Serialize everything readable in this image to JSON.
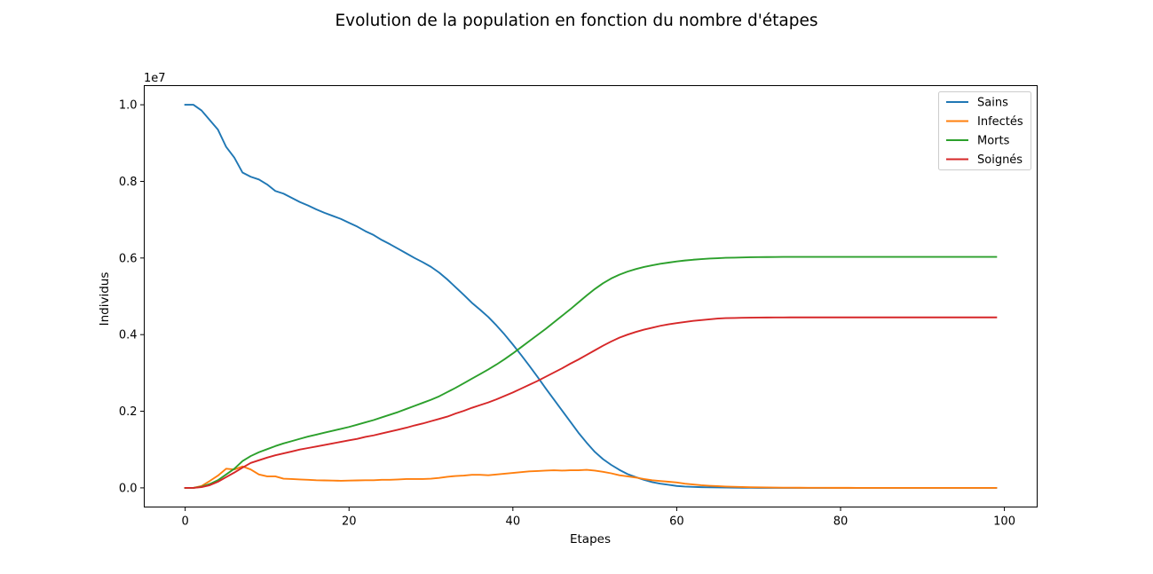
{
  "chart_data": {
    "type": "line",
    "title": "Evolution de la population en fonction du nombre d'étapes",
    "xlabel": "Etapes",
    "ylabel": "Individus",
    "y_offset_label": "1e7",
    "xlim": [
      -5,
      104
    ],
    "ylim": [
      -0.05,
      1.05
    ],
    "x_ticks": [
      0,
      20,
      40,
      60,
      80,
      100
    ],
    "x_tick_labels": [
      "0",
      "20",
      "40",
      "60",
      "80",
      "100"
    ],
    "y_ticks": [
      0.0,
      0.2,
      0.4,
      0.6,
      0.8,
      1.0
    ],
    "y_tick_labels": [
      "0.0",
      "0.2",
      "0.4",
      "0.6",
      "0.8",
      "1.0"
    ],
    "grid": false,
    "legend_position": "top-right",
    "x": [
      0,
      1,
      2,
      3,
      4,
      5,
      6,
      7,
      8,
      9,
      10,
      11,
      12,
      13,
      14,
      15,
      16,
      17,
      18,
      19,
      20,
      21,
      22,
      23,
      24,
      25,
      26,
      27,
      28,
      29,
      30,
      31,
      32,
      33,
      34,
      35,
      36,
      37,
      38,
      39,
      40,
      41,
      42,
      43,
      44,
      45,
      46,
      47,
      48,
      49,
      50,
      51,
      52,
      53,
      54,
      55,
      56,
      57,
      58,
      59,
      60,
      61,
      62,
      63,
      64,
      65,
      66,
      67,
      68,
      69,
      70,
      71,
      72,
      73,
      74,
      75,
      76,
      77,
      78,
      79,
      80,
      81,
      82,
      83,
      84,
      85,
      86,
      87,
      88,
      89,
      90,
      91,
      92,
      93,
      94,
      95,
      96,
      97,
      98,
      99
    ],
    "series": [
      {
        "name": "Sains",
        "color": "#1f77b4",
        "values": [
          1.0,
          1.0,
          0.985,
          0.96,
          0.935,
          0.89,
          0.862,
          0.823,
          0.812,
          0.805,
          0.792,
          0.775,
          0.768,
          0.757,
          0.746,
          0.737,
          0.727,
          0.718,
          0.71,
          0.702,
          0.692,
          0.682,
          0.67,
          0.66,
          0.647,
          0.636,
          0.624,
          0.612,
          0.6,
          0.589,
          0.577,
          0.562,
          0.544,
          0.524,
          0.504,
          0.483,
          0.465,
          0.446,
          0.424,
          0.4,
          0.374,
          0.347,
          0.319,
          0.29,
          0.26,
          0.231,
          0.202,
          0.173,
          0.144,
          0.118,
          0.094,
          0.075,
          0.06,
          0.047,
          0.036,
          0.028,
          0.021,
          0.015,
          0.011,
          0.008,
          0.005,
          0.0035,
          0.0025,
          0.0018,
          0.0013,
          0.001,
          0.0007,
          0.0005,
          0.0003,
          0.0002,
          0.0001,
          0,
          0,
          0,
          0,
          0,
          0,
          0,
          0,
          0,
          0,
          0,
          0,
          0,
          0,
          0,
          0,
          0,
          0,
          0,
          0,
          0,
          0,
          0,
          0,
          0,
          0,
          0,
          0,
          0
        ]
      },
      {
        "name": "Infectés",
        "color": "#ff7f0e",
        "values": [
          0.0,
          0.0,
          0.005,
          0.018,
          0.032,
          0.05,
          0.048,
          0.056,
          0.048,
          0.035,
          0.03,
          0.03,
          0.024,
          0.023,
          0.022,
          0.021,
          0.02,
          0.0195,
          0.019,
          0.0185,
          0.019,
          0.0195,
          0.02,
          0.02,
          0.021,
          0.021,
          0.022,
          0.023,
          0.023,
          0.023,
          0.024,
          0.026,
          0.029,
          0.031,
          0.032,
          0.034,
          0.034,
          0.033,
          0.035,
          0.037,
          0.039,
          0.041,
          0.043,
          0.044,
          0.045,
          0.046,
          0.045,
          0.046,
          0.046,
          0.047,
          0.045,
          0.042,
          0.038,
          0.033,
          0.03,
          0.027,
          0.023,
          0.02,
          0.018,
          0.016,
          0.014,
          0.011,
          0.009,
          0.007,
          0.0055,
          0.0045,
          0.0035,
          0.0028,
          0.0022,
          0.0017,
          0.0013,
          0.001,
          0.0008,
          0.0006,
          0.0005,
          0.0004,
          0.0003,
          0.0002,
          0.0002,
          0.0001,
          0.0001,
          0.0001,
          0,
          0,
          0,
          0,
          0,
          0,
          0,
          0,
          0,
          0,
          0,
          0,
          0,
          0,
          0,
          0,
          0,
          0
        ]
      },
      {
        "name": "Morts",
        "color": "#2ca02c",
        "values": [
          0.0,
          0.0,
          0.003,
          0.01,
          0.02,
          0.035,
          0.05,
          0.07,
          0.083,
          0.093,
          0.101,
          0.109,
          0.116,
          0.122,
          0.128,
          0.134,
          0.139,
          0.144,
          0.149,
          0.154,
          0.159,
          0.165,
          0.171,
          0.177,
          0.184,
          0.191,
          0.198,
          0.206,
          0.214,
          0.222,
          0.23,
          0.239,
          0.25,
          0.261,
          0.273,
          0.285,
          0.297,
          0.309,
          0.322,
          0.336,
          0.351,
          0.367,
          0.383,
          0.399,
          0.415,
          0.432,
          0.449,
          0.466,
          0.484,
          0.502,
          0.519,
          0.534,
          0.5465,
          0.5565,
          0.5645,
          0.571,
          0.5765,
          0.581,
          0.585,
          0.588,
          0.591,
          0.5935,
          0.5955,
          0.597,
          0.5985,
          0.5995,
          0.6005,
          0.601,
          0.6015,
          0.602,
          0.6023,
          0.6025,
          0.6027,
          0.6028,
          0.6029,
          0.603,
          0.603,
          0.603,
          0.603,
          0.603,
          0.603,
          0.603,
          0.603,
          0.603,
          0.603,
          0.603,
          0.603,
          0.603,
          0.603,
          0.603,
          0.603,
          0.603,
          0.603,
          0.603,
          0.603,
          0.603,
          0.603,
          0.603,
          0.603,
          0.603
        ]
      },
      {
        "name": "Soignés",
        "color": "#d62728",
        "values": [
          0.0,
          0.0,
          0.002,
          0.007,
          0.016,
          0.028,
          0.04,
          0.053,
          0.065,
          0.072,
          0.079,
          0.085,
          0.09,
          0.095,
          0.1,
          0.104,
          0.108,
          0.112,
          0.116,
          0.12,
          0.124,
          0.128,
          0.133,
          0.137,
          0.142,
          0.147,
          0.152,
          0.157,
          0.163,
          0.168,
          0.174,
          0.18,
          0.186,
          0.194,
          0.201,
          0.209,
          0.216,
          0.223,
          0.231,
          0.24,
          0.249,
          0.259,
          0.269,
          0.279,
          0.29,
          0.301,
          0.312,
          0.324,
          0.335,
          0.347,
          0.359,
          0.371,
          0.382,
          0.392,
          0.4,
          0.407,
          0.413,
          0.418,
          0.423,
          0.427,
          0.43,
          0.433,
          0.436,
          0.438,
          0.44,
          0.442,
          0.443,
          0.4435,
          0.444,
          0.4443,
          0.4445,
          0.4447,
          0.4448,
          0.4449,
          0.445,
          0.445,
          0.445,
          0.445,
          0.445,
          0.445,
          0.445,
          0.445,
          0.445,
          0.445,
          0.445,
          0.445,
          0.445,
          0.445,
          0.445,
          0.445,
          0.445,
          0.445,
          0.445,
          0.445,
          0.445,
          0.445,
          0.445,
          0.445,
          0.445,
          0.445
        ]
      }
    ]
  }
}
